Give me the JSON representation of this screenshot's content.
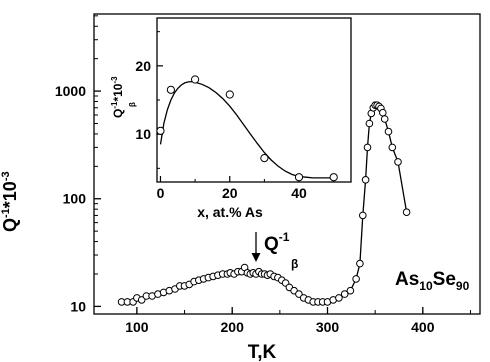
{
  "chart_data": [
    {
      "type": "scatter",
      "xlabel": "T,K",
      "ylabel": "Q",
      "ylabel_sup": "-1",
      "ylabel_suffix": "*10",
      "ylabel_suffix_sup": "-3",
      "xlim": [
        55,
        460
      ],
      "ylim": [
        8.5,
        5200
      ],
      "y_scale": "log",
      "xticks": [
        100,
        200,
        300,
        400
      ],
      "yticks": [
        10,
        100,
        1000
      ],
      "grid": false,
      "series": [
        {
          "x": [
            84,
            90,
            96,
            100,
            105,
            110,
            116,
            122,
            128,
            134,
            140,
            145,
            150,
            155,
            160,
            165,
            170,
            175,
            180,
            185,
            190,
            195,
            198,
            202,
            206,
            210,
            213,
            216,
            219,
            222,
            225,
            228,
            231,
            234,
            237,
            240,
            244,
            248,
            252,
            256,
            260,
            265,
            270,
            275,
            280,
            285,
            290,
            295,
            300,
            306,
            312,
            318,
            324,
            330,
            334,
            337,
            340,
            342,
            344,
            346,
            348,
            350,
            352,
            354,
            356,
            358,
            360,
            364,
            368,
            374,
            383
          ],
          "y": [
            11.0,
            11.0,
            11.0,
            12.0,
            11.5,
            12.5,
            12.5,
            13.0,
            13.5,
            14.0,
            14.5,
            15.5,
            15.5,
            16.0,
            17.0,
            17.5,
            18.0,
            18.5,
            19.0,
            19.5,
            20.0,
            20.0,
            20.5,
            20.0,
            21.0,
            21.0,
            23.0,
            20.5,
            20.0,
            20.5,
            20.0,
            21.0,
            20.0,
            20.0,
            19.5,
            20.0,
            19.0,
            18.5,
            17.5,
            16.5,
            15.0,
            14.0,
            13.0,
            12.0,
            11.5,
            11.0,
            11.0,
            11.0,
            11.0,
            11.5,
            12.0,
            13.0,
            14.0,
            18.0,
            25.0,
            70.0,
            150.0,
            300.0,
            500.0,
            620.0,
            700.0,
            740.0,
            740.0,
            720.0,
            690.0,
            630.0,
            550.0,
            420.0,
            300.0,
            220.0,
            75.0
          ]
        }
      ],
      "annotations": [
        {
          "text": "Q",
          "sup": "-1",
          "sub": "β",
          "arrow": "down",
          "at_x": 213,
          "at_y": 23
        },
        {
          "text": "As",
          "sub1": "10",
          "text2": "Se",
          "sub2": "90"
        }
      ]
    },
    {
      "type": "line",
      "xlabel": "x, at.% As",
      "ylabel": "Q",
      "ylabel_sup": "-1",
      "ylabel_sub": "β",
      "ylabel_suffix": "*10",
      "ylabel_suffix_sup": "-3",
      "xlim": [
        -1,
        55
      ],
      "ylim": [
        3,
        27
      ],
      "xticks": [
        0,
        20,
        40
      ],
      "yticks": [
        10,
        20
      ],
      "grid": false,
      "points": {
        "x": [
          0,
          3,
          10,
          20,
          30,
          40,
          50
        ],
        "y": [
          10.5,
          16.5,
          18.0,
          15.8,
          6.5,
          3.7,
          3.7
        ]
      },
      "fit": {
        "x": [
          0,
          1,
          2,
          3,
          4,
          5,
          6,
          7,
          8,
          9,
          10,
          12,
          14,
          16,
          18,
          20,
          22,
          24,
          26,
          28,
          30,
          32,
          34,
          36,
          38,
          40,
          42,
          44,
          46,
          48,
          50
        ],
        "y": [
          8.5,
          11.6,
          13.6,
          15.0,
          16.0,
          16.7,
          17.2,
          17.5,
          17.65,
          17.7,
          17.6,
          17.3,
          16.8,
          16.1,
          15.2,
          14.1,
          12.8,
          11.4,
          10.0,
          8.6,
          7.3,
          6.2,
          5.3,
          4.6,
          4.1,
          3.8,
          3.7,
          3.6,
          3.6,
          3.6,
          3.6
        ]
      }
    }
  ]
}
